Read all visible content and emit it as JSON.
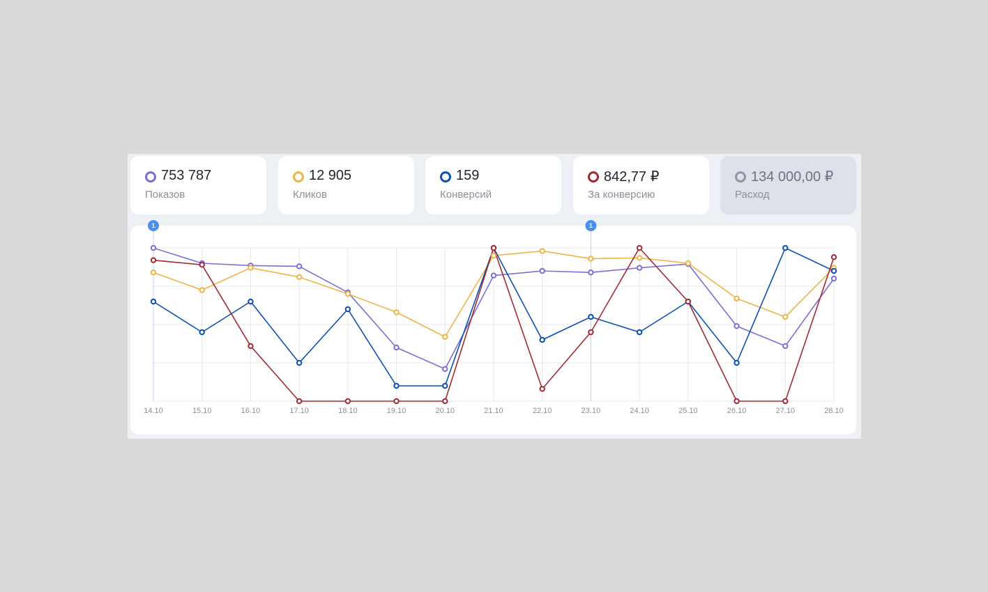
{
  "colors": {
    "background": "#d9d9d9",
    "panel": "#edf0f5",
    "grid": "#e6e8ec",
    "annotation": "#4a8ff0"
  },
  "cards": [
    {
      "value": "753 787",
      "label": "Показов",
      "color": "#7b6fd6",
      "active": true
    },
    {
      "value": "12 905",
      "label": "Кликов",
      "color": "#efb445",
      "active": true
    },
    {
      "value": "159",
      "label": "Конверсий",
      "color": "#0d4fb3",
      "active": true
    },
    {
      "value": "842,77 ₽",
      "label": "За конверсию",
      "color": "#a12a34",
      "active": true
    },
    {
      "value": "134 000,00 ₽",
      "label": "Расход",
      "color": "#8e94a2",
      "active": false
    }
  ],
  "chart_data": {
    "type": "line",
    "title": "",
    "xlabel": "",
    "ylabel": "",
    "ylim": [
      0,
      100
    ],
    "grid": true,
    "legend": "none",
    "categories": [
      "14.10",
      "15.10",
      "16.10",
      "17.10",
      "18.10",
      "19.10",
      "20.10",
      "21.10",
      "22.10",
      "23.10",
      "24.10",
      "25.10",
      "26.10",
      "27.10",
      "28.10"
    ],
    "annotations": [
      {
        "category": "14.10",
        "label": "1"
      },
      {
        "category": "23.10",
        "label": "1"
      }
    ],
    "series": [
      {
        "name": "Показов",
        "color": "#7b6fd6",
        "values": [
          100,
          90,
          88.5,
          88,
          71,
          35,
          21,
          82,
          85,
          84,
          87,
          89.5,
          49,
          36,
          80
        ]
      },
      {
        "name": "Кликов",
        "color": "#efb445",
        "values": [
          84,
          72.5,
          87,
          81,
          70,
          58,
          42,
          95,
          98,
          93,
          93.5,
          90,
          67,
          55,
          87
        ]
      },
      {
        "name": "Конверсий",
        "color": "#0d4fb3",
        "values": [
          65,
          45,
          65,
          25,
          60,
          10,
          10,
          100,
          40,
          55,
          45,
          65,
          25,
          100,
          85
        ]
      },
      {
        "name": "За конверсию",
        "color": "#a12a34",
        "values": [
          92,
          89,
          36,
          0,
          0,
          0,
          0,
          100,
          8,
          45,
          100,
          65,
          0,
          0,
          94
        ]
      }
    ]
  }
}
